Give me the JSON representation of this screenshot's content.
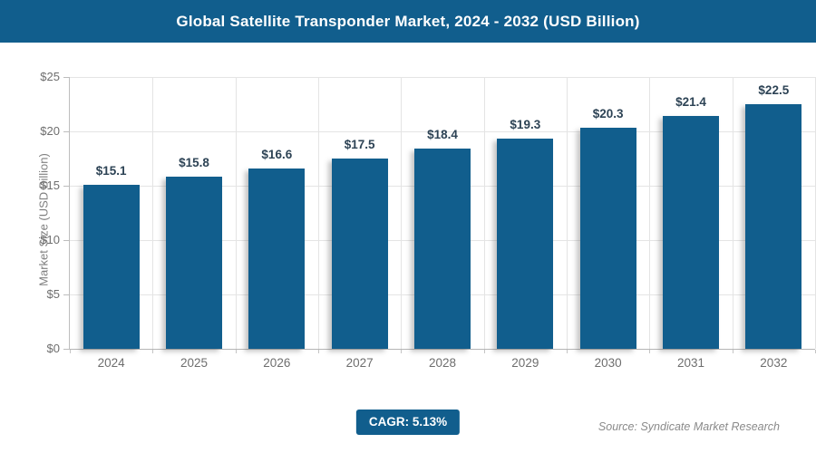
{
  "header": {
    "title": "Global Satellite Transponder Market, 2024 - 2032 (USD Billion)",
    "bg_color": "#115e8d",
    "text_color": "#ffffff"
  },
  "chart_data": {
    "type": "bar",
    "title": "Global Satellite Transponder Market, 2024 - 2032 (USD Billion)",
    "categories": [
      "2024",
      "2025",
      "2026",
      "2027",
      "2028",
      "2029",
      "2030",
      "2031",
      "2032"
    ],
    "values": [
      15.1,
      15.8,
      16.6,
      17.5,
      18.4,
      19.3,
      20.3,
      21.4,
      22.5
    ],
    "bar_labels": [
      "$15.1",
      "$15.8",
      "$16.6",
      "$17.5",
      "$18.4",
      "$19.3",
      "$20.3",
      "$21.4",
      "$22.5"
    ],
    "xlabel": "",
    "ylabel": "Market Size (USD Billion)",
    "ylim": [
      0,
      25
    ],
    "y_tick_values": [
      0,
      5,
      10,
      15,
      20,
      25
    ],
    "y_tick_labels": [
      "$0",
      "$5",
      "$10",
      "$15",
      "$20",
      "$25"
    ],
    "grid": true,
    "legend": "none",
    "bar_color": "#115e8d",
    "value_label_color": "#2d4355"
  },
  "footer": {
    "cagr_label": "CAGR: 5.13%",
    "source": "Source: Syndicate Market Research"
  }
}
